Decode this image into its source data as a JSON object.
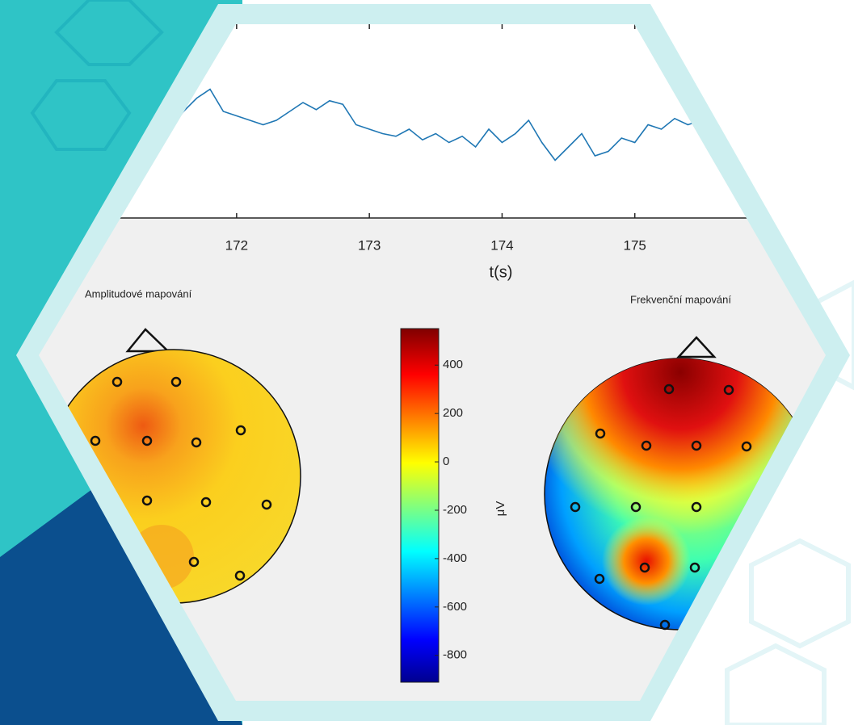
{
  "chart_data": [
    {
      "type": "line",
      "x": [
        171.5,
        171.6,
        171.7,
        171.8,
        171.9,
        172.0,
        172.1,
        172.2,
        172.3,
        172.4,
        172.5,
        172.6,
        172.7,
        172.8,
        172.9,
        173.0,
        173.1,
        173.2,
        173.3,
        173.4,
        173.5,
        173.6,
        173.7,
        173.8,
        173.9,
        174.0,
        174.1,
        174.2,
        174.3,
        174.4,
        174.5,
        174.6,
        174.7,
        174.8,
        174.9,
        175.0,
        175.1,
        175.2,
        175.3,
        175.4,
        175.5,
        175.6,
        175.7,
        175.8,
        175.9,
        176.0
      ],
      "values": [
        0.5,
        0.7,
        0.85,
        0.95,
        0.7,
        0.65,
        0.6,
        0.55,
        0.6,
        0.7,
        0.8,
        0.72,
        0.82,
        0.78,
        0.55,
        0.5,
        0.45,
        0.42,
        0.5,
        0.38,
        0.45,
        0.35,
        0.42,
        0.3,
        0.5,
        0.35,
        0.45,
        0.6,
        0.35,
        0.15,
        0.3,
        0.45,
        0.2,
        0.25,
        0.4,
        0.35,
        0.55,
        0.5,
        0.62,
        0.55,
        0.6,
        0.5,
        0.45,
        0.3,
        0.25,
        0.2
      ],
      "color": "#1f77b4",
      "xlim": [
        171.1,
        176.0
      ],
      "xticks": [
        172,
        173,
        174,
        175
      ],
      "ylim": [
        0,
        1
      ],
      "xlabel": "t(s)"
    },
    {
      "type": "colorbar",
      "ylim": [
        -911,
        551
      ],
      "yticks": [
        400,
        200,
        0,
        -200,
        -400,
        -600,
        -800
      ],
      "ylabel": "μV"
    }
  ],
  "maps": [
    {
      "title": "Amplitudové mapování"
    },
    {
      "title": "Frekvenční mapování"
    }
  ]
}
